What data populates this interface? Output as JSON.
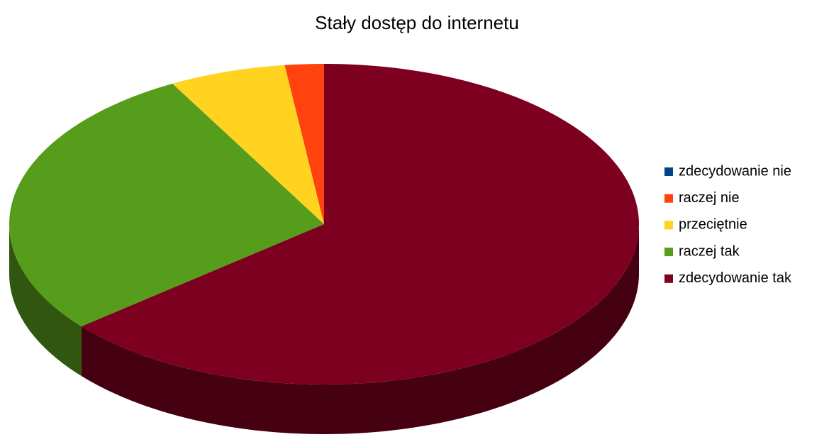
{
  "chart_data": {
    "type": "pie",
    "title": "Stały dostęp do internetu",
    "categories": [
      "zdecydowanie nie",
      "raczej nie",
      "przeciętnie",
      "raczej tak",
      "zdecydowanie tak"
    ],
    "values": [
      0,
      2,
      6,
      28,
      64
    ],
    "colors": [
      "#004586",
      "#ff420e",
      "#ffd320",
      "#579d1c",
      "#7e0021"
    ],
    "legend": "right"
  }
}
